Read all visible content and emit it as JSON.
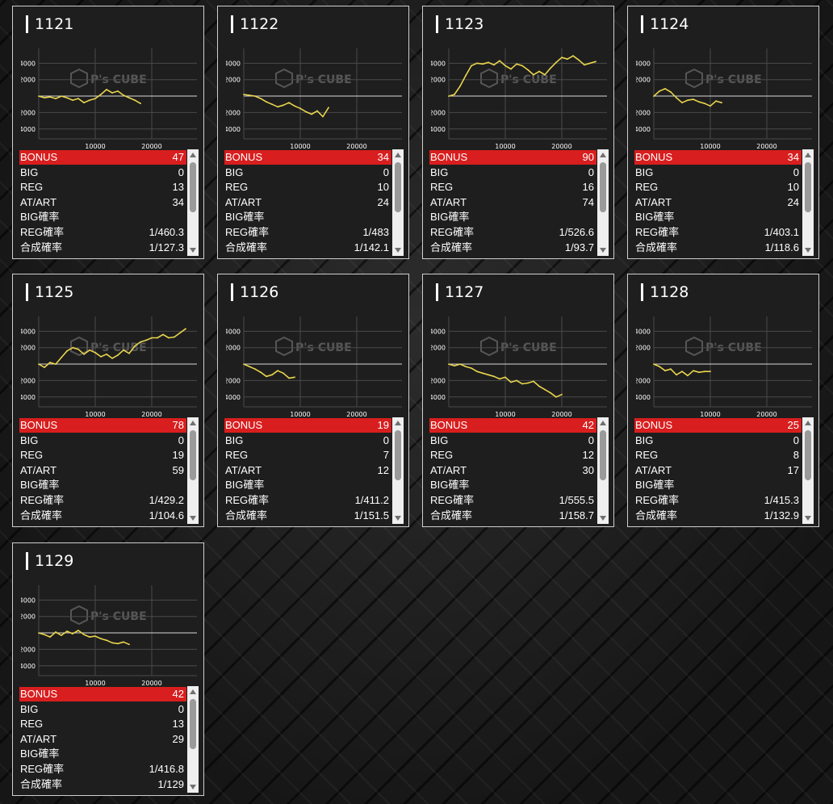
{
  "labels": {
    "bonus": "BONUS",
    "big": "BIG",
    "reg": "REG",
    "atart": "AT/ART",
    "big_rate": "BIG確率",
    "reg_rate": "REG確率",
    "total_rate": "合成確率"
  },
  "watermark": {
    "brand": "P's CUBE",
    "icon": "cube-logo-icon"
  },
  "colors": {
    "accent_red": "#d81e1e",
    "line_yellow": "#e8d44d",
    "grid": "#4a4a4a"
  },
  "machines": [
    {
      "number": "1121",
      "bonus": "47",
      "big": "0",
      "reg": "13",
      "atart": "34",
      "big_rate": "",
      "reg_rate": "1/460.3",
      "total_rate": "1/127.3"
    },
    {
      "number": "1122",
      "bonus": "34",
      "big": "0",
      "reg": "10",
      "atart": "24",
      "big_rate": "",
      "reg_rate": "1/483",
      "total_rate": "1/142.1"
    },
    {
      "number": "1123",
      "bonus": "90",
      "big": "0",
      "reg": "16",
      "atart": "74",
      "big_rate": "",
      "reg_rate": "1/526.6",
      "total_rate": "1/93.7"
    },
    {
      "number": "1124",
      "bonus": "34",
      "big": "0",
      "reg": "10",
      "atart": "24",
      "big_rate": "",
      "reg_rate": "1/403.1",
      "total_rate": "1/118.6"
    },
    {
      "number": "1125",
      "bonus": "78",
      "big": "0",
      "reg": "19",
      "atart": "59",
      "big_rate": "",
      "reg_rate": "1/429.2",
      "total_rate": "1/104.6"
    },
    {
      "number": "1126",
      "bonus": "19",
      "big": "0",
      "reg": "7",
      "atart": "12",
      "big_rate": "",
      "reg_rate": "1/411.2",
      "total_rate": "1/151.5"
    },
    {
      "number": "1127",
      "bonus": "42",
      "big": "0",
      "reg": "12",
      "atart": "30",
      "big_rate": "",
      "reg_rate": "1/555.5",
      "total_rate": "1/158.7"
    },
    {
      "number": "1128",
      "bonus": "25",
      "big": "0",
      "reg": "8",
      "atart": "17",
      "big_rate": "",
      "reg_rate": "1/415.3",
      "total_rate": "1/132.9"
    },
    {
      "number": "1129",
      "bonus": "42",
      "big": "0",
      "reg": "13",
      "atart": "29",
      "big_rate": "",
      "reg_rate": "1/416.8",
      "total_rate": "1/129"
    }
  ],
  "chart_data": [
    {
      "type": "line",
      "title": "1121",
      "x_ticks": [
        "10000",
        "20000"
      ],
      "y_ticks": [
        "4000",
        "2000",
        "-2000",
        "-4000"
      ],
      "xlim": [
        0,
        28000
      ],
      "ylim": [
        -5200,
        5800
      ],
      "series": [
        {
          "x": [
            0,
            1000,
            2000,
            3000,
            4000,
            5000,
            6000,
            7000,
            8000,
            9000,
            10000,
            11000,
            12000,
            13000,
            14000,
            15000,
            16000,
            17000,
            18000
          ],
          "values": [
            0,
            -200,
            -100,
            -300,
            0,
            -200,
            -500,
            -300,
            -800,
            -500,
            -300,
            200,
            800,
            400,
            600,
            100,
            -200,
            -500,
            -900
          ]
        }
      ]
    },
    {
      "type": "line",
      "title": "1122",
      "x_ticks": [
        "10000",
        "20000"
      ],
      "y_ticks": [
        "4000",
        "2000",
        "-2000",
        "-4000"
      ],
      "xlim": [
        0,
        28000
      ],
      "ylim": [
        -5200,
        5800
      ],
      "series": [
        {
          "x": [
            0,
            1000,
            2000,
            3000,
            4000,
            5000,
            6000,
            7000,
            8000,
            9000,
            10000,
            11000,
            12000,
            13000,
            14000,
            15000
          ],
          "values": [
            200,
            100,
            0,
            -300,
            -700,
            -1000,
            -1300,
            -1100,
            -800,
            -1200,
            -1500,
            -1900,
            -2200,
            -1800,
            -2500,
            -1400
          ]
        }
      ]
    },
    {
      "type": "line",
      "title": "1123",
      "x_ticks": [
        "10000",
        "20000"
      ],
      "y_ticks": [
        "4000",
        "2000",
        "-2000",
        "-4000"
      ],
      "xlim": [
        0,
        28000
      ],
      "ylim": [
        -5200,
        5800
      ],
      "series": [
        {
          "x": [
            0,
            1000,
            2000,
            3000,
            4000,
            5000,
            6000,
            7000,
            8000,
            9000,
            10000,
            11000,
            12000,
            13000,
            14000,
            15000,
            16000,
            17000,
            18000,
            19000,
            20000,
            21000,
            22000,
            23000,
            24000,
            25000,
            26000
          ],
          "values": [
            0,
            200,
            1200,
            2500,
            3700,
            4000,
            3900,
            4100,
            3800,
            4300,
            3700,
            3300,
            3900,
            3700,
            3200,
            2600,
            3000,
            2600,
            3400,
            4100,
            4700,
            4500,
            4900,
            4400,
            3800,
            4000,
            4200
          ]
        }
      ]
    },
    {
      "type": "line",
      "title": "1124",
      "x_ticks": [
        "10000",
        "20000"
      ],
      "y_ticks": [
        "4000",
        "2000",
        "-2000",
        "-4000"
      ],
      "xlim": [
        0,
        28000
      ],
      "ylim": [
        -5200,
        5800
      ],
      "series": [
        {
          "x": [
            0,
            1000,
            2000,
            3000,
            4000,
            5000,
            6000,
            7000,
            8000,
            9000,
            10000,
            11000,
            12000
          ],
          "values": [
            0,
            600,
            900,
            500,
            -200,
            -800,
            -500,
            -400,
            -700,
            -900,
            -1200,
            -600,
            -800
          ]
        }
      ]
    },
    {
      "type": "line",
      "title": "1125",
      "x_ticks": [
        "10000",
        "20000"
      ],
      "y_ticks": [
        "4000",
        "2000",
        "-2000",
        "-4000"
      ],
      "xlim": [
        0,
        28000
      ],
      "ylim": [
        -5200,
        5800
      ],
      "series": [
        {
          "x": [
            0,
            1000,
            2000,
            3000,
            4000,
            5000,
            6000,
            7000,
            8000,
            9000,
            10000,
            11000,
            12000,
            13000,
            14000,
            15000,
            16000,
            17000,
            18000,
            19000,
            20000,
            21000,
            22000,
            23000,
            24000,
            25000,
            26000
          ],
          "values": [
            0,
            -400,
            200,
            0,
            800,
            1600,
            2000,
            1800,
            1200,
            1700,
            1400,
            900,
            1200,
            700,
            1100,
            1700,
            1300,
            2200,
            2700,
            2900,
            3200,
            3200,
            3600,
            3200,
            3300,
            3800,
            4300
          ]
        }
      ]
    },
    {
      "type": "line",
      "title": "1126",
      "x_ticks": [
        "10000",
        "20000"
      ],
      "y_ticks": [
        "4000",
        "2000",
        "-2000",
        "-4000"
      ],
      "xlim": [
        0,
        28000
      ],
      "ylim": [
        -5200,
        5800
      ],
      "series": [
        {
          "x": [
            0,
            1000,
            2000,
            3000,
            4000,
            5000,
            6000,
            7000,
            8000,
            9000
          ],
          "values": [
            0,
            -300,
            -600,
            -1000,
            -1500,
            -1300,
            -800,
            -1100,
            -1700,
            -1600
          ]
        }
      ]
    },
    {
      "type": "line",
      "title": "1127",
      "x_ticks": [
        "10000",
        "20000"
      ],
      "y_ticks": [
        "4000",
        "2000",
        "-2000",
        "-4000"
      ],
      "xlim": [
        0,
        28000
      ],
      "ylim": [
        -5200,
        5800
      ],
      "series": [
        {
          "x": [
            0,
            1000,
            2000,
            3000,
            4000,
            5000,
            6000,
            7000,
            8000,
            9000,
            10000,
            11000,
            12000,
            13000,
            14000,
            15000,
            16000,
            17000,
            18000,
            19000,
            20000
          ],
          "values": [
            0,
            -200,
            0,
            -300,
            -500,
            -900,
            -1100,
            -1300,
            -1500,
            -1800,
            -1600,
            -2200,
            -2000,
            -2400,
            -2300,
            -2100,
            -2700,
            -3100,
            -3500,
            -4000,
            -3700
          ]
        }
      ]
    },
    {
      "type": "line",
      "title": "1128",
      "x_ticks": [
        "10000",
        "20000"
      ],
      "y_ticks": [
        "4000",
        "2000",
        "-2000",
        "-4000"
      ],
      "xlim": [
        0,
        28000
      ],
      "ylim": [
        -5200,
        5800
      ],
      "series": [
        {
          "x": [
            0,
            1000,
            2000,
            3000,
            4000,
            5000,
            6000,
            7000,
            8000,
            9000,
            10000
          ],
          "values": [
            0,
            -300,
            -800,
            -600,
            -1300,
            -900,
            -1400,
            -800,
            -1000,
            -900,
            -900
          ]
        }
      ]
    },
    {
      "type": "line",
      "title": "1129",
      "x_ticks": [
        "10000",
        "20000"
      ],
      "y_ticks": [
        "4000",
        "2000",
        "-2000",
        "-4000"
      ],
      "xlim": [
        0,
        28000
      ],
      "ylim": [
        -5200,
        5800
      ],
      "series": [
        {
          "x": [
            0,
            1000,
            2000,
            3000,
            4000,
            5000,
            6000,
            7000,
            8000,
            9000,
            10000,
            11000,
            12000,
            13000,
            14000,
            15000,
            16000
          ],
          "values": [
            0,
            -200,
            -500,
            100,
            -300,
            200,
            -100,
            300,
            -200,
            -500,
            -400,
            -700,
            -900,
            -1200,
            -1300,
            -1100,
            -1400
          ]
        }
      ]
    }
  ]
}
